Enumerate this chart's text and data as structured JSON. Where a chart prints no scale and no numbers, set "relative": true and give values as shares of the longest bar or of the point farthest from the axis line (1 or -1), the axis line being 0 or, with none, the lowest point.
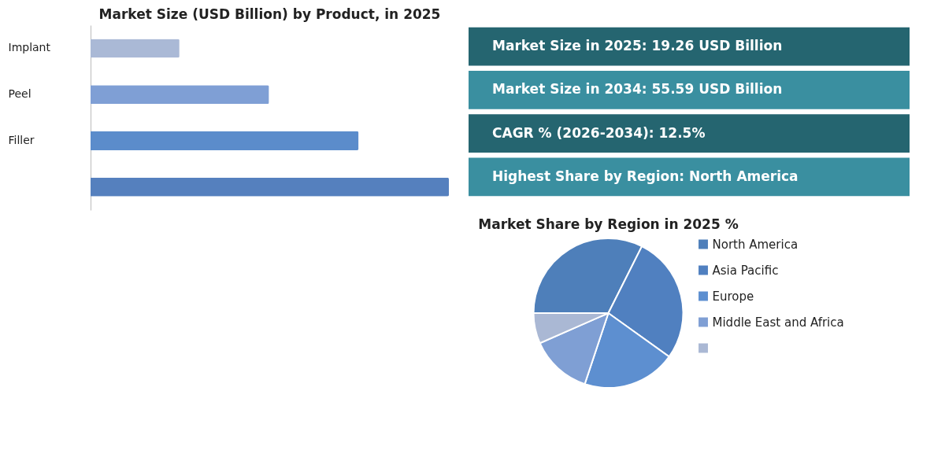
{
  "chart_data": [
    {
      "type": "bar",
      "orientation": "horizontal",
      "relative": true,
      "title": "Market Size (USD Billion) by Product, in 2025",
      "categories": [
        "Implant",
        "Peel",
        "Filler",
        null
      ],
      "values": [
        0.248,
        0.498,
        0.748,
        1
      ],
      "colors": [
        "#aab9d6",
        "#7f9fd5",
        "#5b8ccb",
        "#5580be"
      ]
    },
    {
      "type": "other",
      "annotations": [
        "Market Size in 2025: 19.26 USD Billion",
        "Market Size in 2034: 55.59 USD Billion",
        "CAGR % (2026-2034): 12.5%",
        "Highest Share by Region: North America"
      ],
      "colors": [
        "#256570",
        "#3a8fa0",
        "#256570",
        "#3a8fa0"
      ]
    },
    {
      "type": "pie",
      "title": "Market Share by Region in 2025 %",
      "categories": [
        "North America",
        "Asia Pacific",
        "Europe",
        "Middle East and Africa",
        null
      ],
      "values": [
        32.4,
        27.5,
        20.2,
        13.3,
        6.6
      ],
      "colors": [
        "#4e7fba",
        "#5080c0",
        "#5d8fd0",
        "#7f9fd4",
        "#aab8d4"
      ],
      "legend": "right"
    }
  ]
}
